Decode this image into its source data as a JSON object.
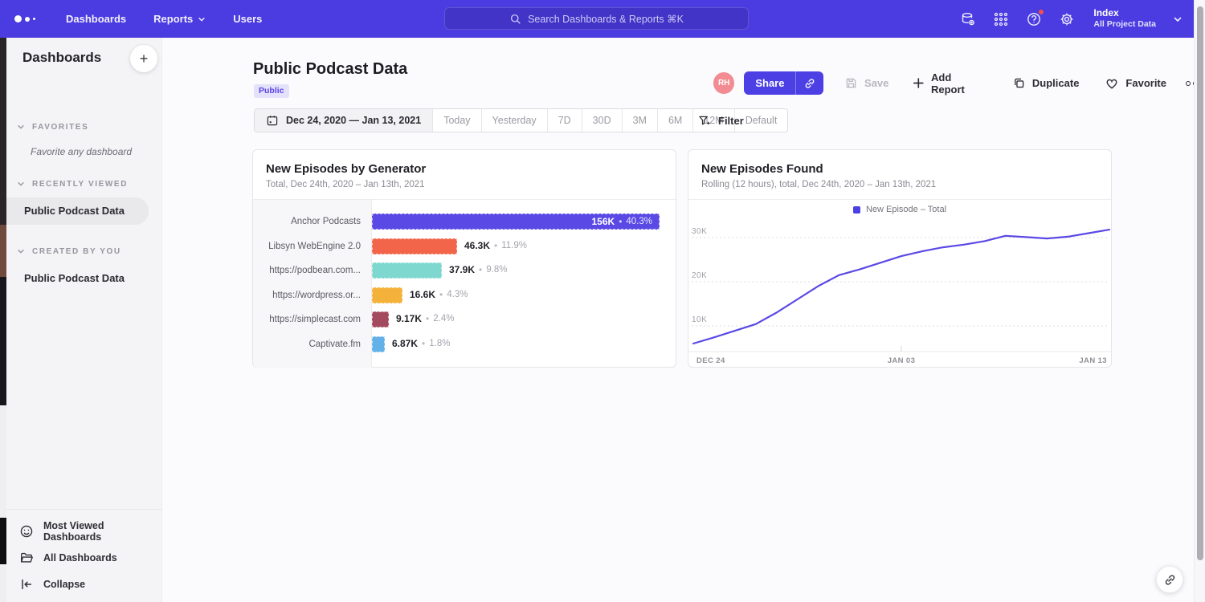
{
  "nav": {
    "items": [
      {
        "label": "Dashboards",
        "chevron": false
      },
      {
        "label": "Reports",
        "chevron": true
      },
      {
        "label": "Users",
        "chevron": false
      }
    ],
    "search_placeholder": "Search Dashboards & Reports ⌘K",
    "right_icons": [
      "data-management-icon",
      "apps-grid-icon",
      "help-icon",
      "settings-icon"
    ],
    "project": {
      "name": "Index",
      "subtitle": "All Project Data"
    }
  },
  "sidebar": {
    "title": "Dashboards",
    "add_button": "+",
    "sections": [
      {
        "label": "FAVORITES",
        "empty_text": "Favorite any dashboard",
        "items": []
      },
      {
        "label": "RECENTLY VIEWED",
        "empty_text": "",
        "items": [
          {
            "label": "Public Podcast Data",
            "selected": true
          }
        ]
      },
      {
        "label": "CREATED BY YOU",
        "empty_text": "",
        "items": [
          {
            "label": "Public Podcast Data",
            "selected": false
          }
        ]
      }
    ],
    "footer": [
      {
        "label": "Most Viewed Dashboards",
        "icon": "smiley-icon"
      },
      {
        "label": "All Dashboards",
        "icon": "folder-icon"
      },
      {
        "label": "Collapse",
        "icon": "collapse-icon"
      }
    ]
  },
  "header": {
    "title": "Public Podcast Data",
    "badge": "Public",
    "avatar_initials": "RH",
    "share_label": "Share",
    "save_label": "Save",
    "add_report_label": "Add Report",
    "duplicate_label": "Duplicate",
    "favorite_label": "Favorite"
  },
  "date_bar": {
    "range": "Dec 24, 2020 — Jan 13, 2021",
    "presets": [
      "Today",
      "Yesterday",
      "7D",
      "30D",
      "3M",
      "6M",
      "12M",
      "Default"
    ],
    "filter_label": "Filter"
  },
  "colors": {
    "nav": "#4b3ce1",
    "accent": "#4c3fe4",
    "line": "#5a49e5",
    "avatar": "#f28b92",
    "badge_bg": "#e4e1fb",
    "badge_text": "#5a44e6"
  },
  "chart_data": [
    {
      "type": "bar",
      "orientation": "horizontal",
      "title": "New Episodes by Generator",
      "subtitle": "Total, Dec 24th, 2020 – Jan 13th, 2021",
      "categories": [
        "Anchor Podcasts",
        "Libsyn WebEngine 2.0",
        "https://podbean.com...",
        "https://wordpress.or...",
        "https://simplecast.com",
        "Captivate.fm"
      ],
      "values": [
        156000,
        46300,
        37900,
        16600,
        9170,
        6870
      ],
      "value_labels": [
        "156K",
        "46.3K",
        "37.9K",
        "16.6K",
        "9.17K",
        "6.87K"
      ],
      "pct_labels": [
        "40.3%",
        "11.9%",
        "9.8%",
        "4.3%",
        "2.4%",
        "1.8%"
      ],
      "colors": [
        "#5a49e5",
        "#f3654b",
        "#7ed8d0",
        "#f5b23b",
        "#a44a5f",
        "#62b1e8"
      ],
      "xmax": 156000
    },
    {
      "type": "line",
      "title": "New Episodes Found",
      "subtitle": "Rolling (12 hours), total, Dec 24th, 2020 – Jan 13th, 2021",
      "legend": [
        {
          "label": "New Episode – Total",
          "color": "#4c3fe4"
        }
      ],
      "x_ticks": [
        "DEC 24",
        "JAN 03",
        "JAN 13"
      ],
      "y_ticks": [
        "10K",
        "20K",
        "30K"
      ],
      "ylim": [
        0,
        35000
      ],
      "grid": "dashed",
      "legend_position": "top-center",
      "x_range": [
        "Dec 24, 2020",
        "Jan 13, 2021"
      ],
      "values": [
        6000,
        7400,
        8900,
        10400,
        13000,
        16000,
        19000,
        21500,
        22800,
        24300,
        25800,
        26900,
        27800,
        28400,
        29200,
        30400,
        30100,
        29800,
        30200,
        31000,
        31800
      ]
    }
  ]
}
